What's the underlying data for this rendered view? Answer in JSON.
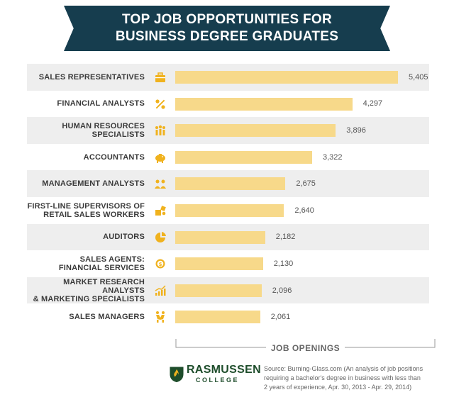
{
  "header": {
    "title_line1": "TOP JOB OPPORTUNITIES FOR",
    "title_line2": "BUSINESS DEGREE GRADUATES"
  },
  "chart_data": {
    "type": "bar",
    "orientation": "horizontal",
    "title": "TOP JOB OPPORTUNITIES FOR BUSINESS DEGREE GRADUATES",
    "xlabel": "JOB OPENINGS",
    "ylabel": "",
    "categories": [
      [
        "SALES REPRESENTATIVES"
      ],
      [
        "FINANCIAL ANALYSTS"
      ],
      [
        "HUMAN RESOURCES",
        "SPECIALISTS"
      ],
      [
        "ACCOUNTANTS"
      ],
      [
        "MANAGEMENT ANALYSTS"
      ],
      [
        "FIRST-LINE SUPERVISORS OF",
        "RETAIL SALES WORKERS"
      ],
      [
        "AUDITORS"
      ],
      [
        "SALES AGENTS:",
        "FINANCIAL SERVICES"
      ],
      [
        "MARKET RESEARCH ANALYSTS",
        "& MARKETING SPECIALISTS"
      ],
      [
        "SALES MANAGERS"
      ]
    ],
    "values": [
      5405,
      4297,
      3896,
      3322,
      2675,
      2640,
      2182,
      2130,
      2096,
      2061
    ],
    "value_labels": [
      "5,405",
      "4,297",
      "3,896",
      "3,322",
      "2,675",
      "2,640",
      "2,182",
      "2,130",
      "2,096",
      "2,061"
    ],
    "icons": [
      "briefcase-icon",
      "percent-icon",
      "people-group-icon",
      "piggy-bank-icon",
      "team-icon",
      "cubes-icon",
      "pie-chart-icon",
      "dollar-gear-icon",
      "bar-chart-icon",
      "handshake-icon"
    ],
    "xlim": [
      0,
      5405
    ],
    "grid": false,
    "bar_color": "#f7d98a",
    "icon_color": "#f0b21e"
  },
  "footer": {
    "logo_name": "RASMUSSEN",
    "logo_sub": "COLLEGE",
    "source_lines": [
      "Source: Burning-Glass.com (An analysis of job positions",
      "requiring a bachelor's degree in business with less than",
      "2 years of experience, Apr. 30, 2013 - Apr. 29, 2014)"
    ]
  },
  "colors": {
    "banner": "#163d4e",
    "bar": "#f7d98a",
    "icon": "#f0b21e",
    "row_shade": "#eeeeee",
    "logo_green": "#1e4d2b"
  }
}
